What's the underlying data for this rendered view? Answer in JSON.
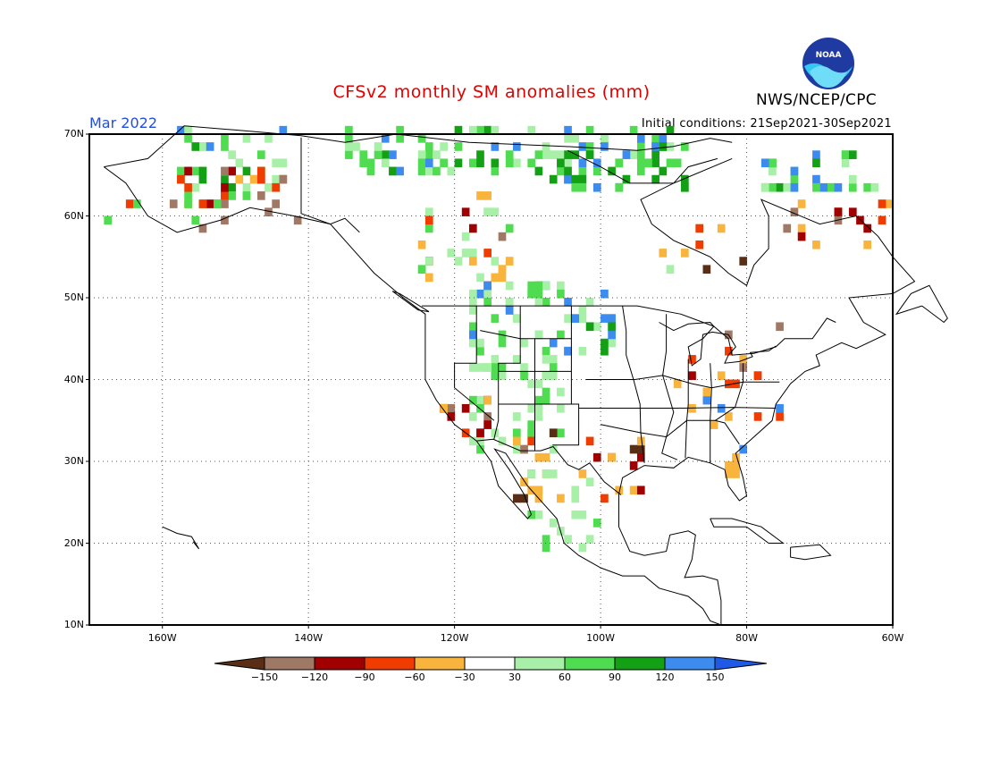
{
  "header": {
    "title": "CFSv2 monthly SM anomalies (mm)",
    "month": "Mar 2022",
    "initial_conditions": "Initial conditions: 21Sep2021-30Sep2021",
    "agency": "NWS/NCEP/CPC",
    "logo_text": "NOAA"
  },
  "axes": {
    "lat_labels": [
      "70N",
      "60N",
      "50N",
      "40N",
      "30N",
      "20N",
      "10N"
    ],
    "lat_values": [
      70,
      60,
      50,
      40,
      30,
      20,
      10
    ],
    "lon_labels": [
      "160W",
      "140W",
      "120W",
      "100W",
      "80W",
      "60W"
    ],
    "lon_values": [
      -160,
      -140,
      -120,
      -100,
      -80,
      -60
    ],
    "lon_range": [
      -170,
      -60
    ],
    "lat_range": [
      10,
      70
    ]
  },
  "colorbar": {
    "labels": [
      "-150",
      "-120",
      "-90",
      "-60",
      "-30",
      "30",
      "60",
      "90",
      "120",
      "150"
    ],
    "colors": [
      "#5a2e14",
      "#a07866",
      "#a00000",
      "#f03c00",
      "#f8b43c",
      "#ffffff",
      "#a8f0a8",
      "#50dc50",
      "#14a014",
      "#3c8cf0",
      "#1f5ae6"
    ]
  },
  "colors": {
    "wet_light": "#a8f0a8",
    "wet_mid": "#50dc50",
    "wet_dark": "#14a014",
    "wet_blue": "#3c8cf0",
    "dry_orange": "#f8b43c",
    "dry_red": "#f03c00",
    "dry_dark": "#a00000",
    "dry_brown": "#a07866",
    "dry_xbrown": "#5a2e14"
  }
}
